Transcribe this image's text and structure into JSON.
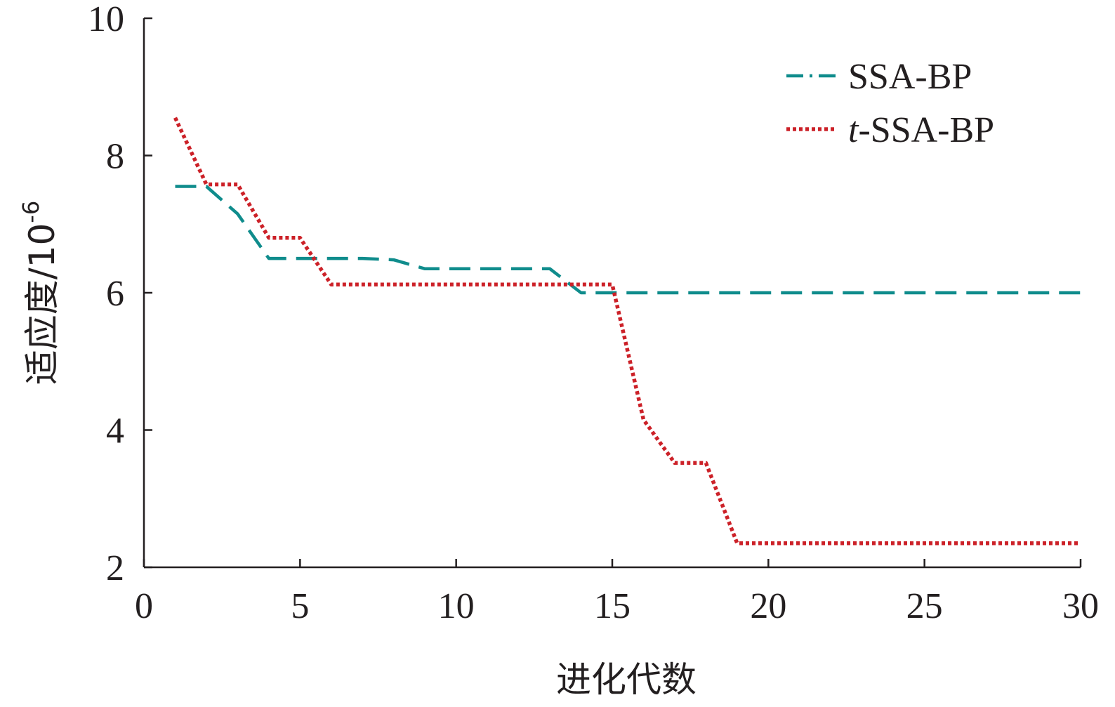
{
  "chart_data": {
    "type": "line",
    "xlabel": "进化代数",
    "ylabel_main": "适应度/10",
    "ylabel_sup": "-6",
    "xlim": [
      0,
      30
    ],
    "ylim": [
      2,
      10
    ],
    "xticks": [
      "0",
      "5",
      "10",
      "15",
      "20",
      "25",
      "30"
    ],
    "yticks": [
      "2",
      "4",
      "6",
      "8",
      "10"
    ],
    "grid": false,
    "legend_position": "top-right",
    "series": [
      {
        "name": "SSA-BP",
        "name_prefix_italic": "",
        "name_suffix": "SSA-BP",
        "color": "#0f8c8c",
        "line_style": "dash-dot",
        "x": [
          1,
          2,
          3,
          4,
          5,
          6,
          7,
          8,
          9,
          10,
          11,
          12,
          13,
          14,
          15,
          16,
          17,
          18,
          19,
          20,
          21,
          22,
          23,
          24,
          25,
          26,
          27,
          28,
          29,
          30
        ],
        "y": [
          7.55,
          7.55,
          7.15,
          6.5,
          6.5,
          6.5,
          6.5,
          6.48,
          6.35,
          6.35,
          6.35,
          6.35,
          6.35,
          6.0,
          6.0,
          6.0,
          6.0,
          6.0,
          6.0,
          6.0,
          6.0,
          6.0,
          6.0,
          6.0,
          6.0,
          6.0,
          6.0,
          6.0,
          6.0,
          6.0
        ]
      },
      {
        "name": "t-SSA-BP",
        "name_prefix_italic": "t",
        "name_suffix": "-SSA-BP",
        "color": "#cc2128",
        "line_style": "dotted",
        "x": [
          1,
          2,
          3,
          4,
          5,
          6,
          7,
          8,
          9,
          10,
          11,
          12,
          13,
          14,
          15,
          16,
          17,
          18,
          19,
          20,
          21,
          22,
          23,
          24,
          25,
          26,
          27,
          28,
          29,
          30
        ],
        "y": [
          8.55,
          7.58,
          7.58,
          6.8,
          6.8,
          6.12,
          6.12,
          6.12,
          6.12,
          6.12,
          6.12,
          6.12,
          6.12,
          6.12,
          6.12,
          4.15,
          3.52,
          3.52,
          2.35,
          2.35,
          2.35,
          2.35,
          2.35,
          2.35,
          2.35,
          2.35,
          2.35,
          2.35,
          2.35,
          2.35
        ]
      }
    ]
  }
}
